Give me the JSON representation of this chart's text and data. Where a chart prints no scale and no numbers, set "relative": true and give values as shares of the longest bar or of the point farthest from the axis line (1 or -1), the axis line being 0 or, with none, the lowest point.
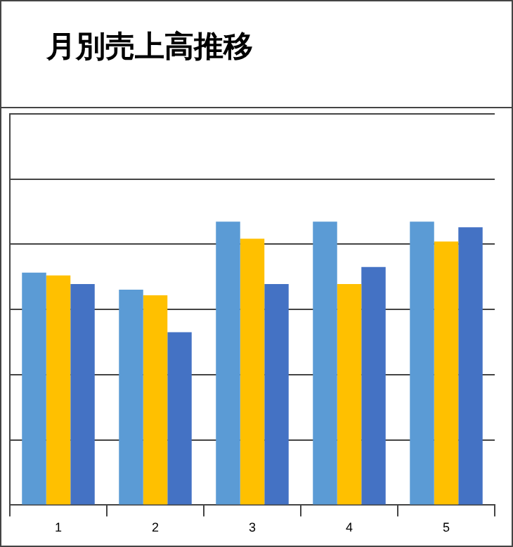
{
  "chart_data": {
    "type": "bar",
    "title": "月別売上高推移",
    "categories": [
      "1",
      "2",
      "3",
      "4",
      "5"
    ],
    "relative": true,
    "grid": "y",
    "series": [
      {
        "color": "#5b9bd5",
        "values": [
          0.82,
          0.76,
          1.0,
          1.0,
          1.0
        ]
      },
      {
        "color": "#ffc000",
        "values": [
          0.81,
          0.74,
          0.94,
          0.78,
          0.93
        ]
      },
      {
        "color": "#4472c4",
        "values": [
          0.78,
          0.61,
          0.78,
          0.84,
          0.98
        ]
      }
    ]
  }
}
